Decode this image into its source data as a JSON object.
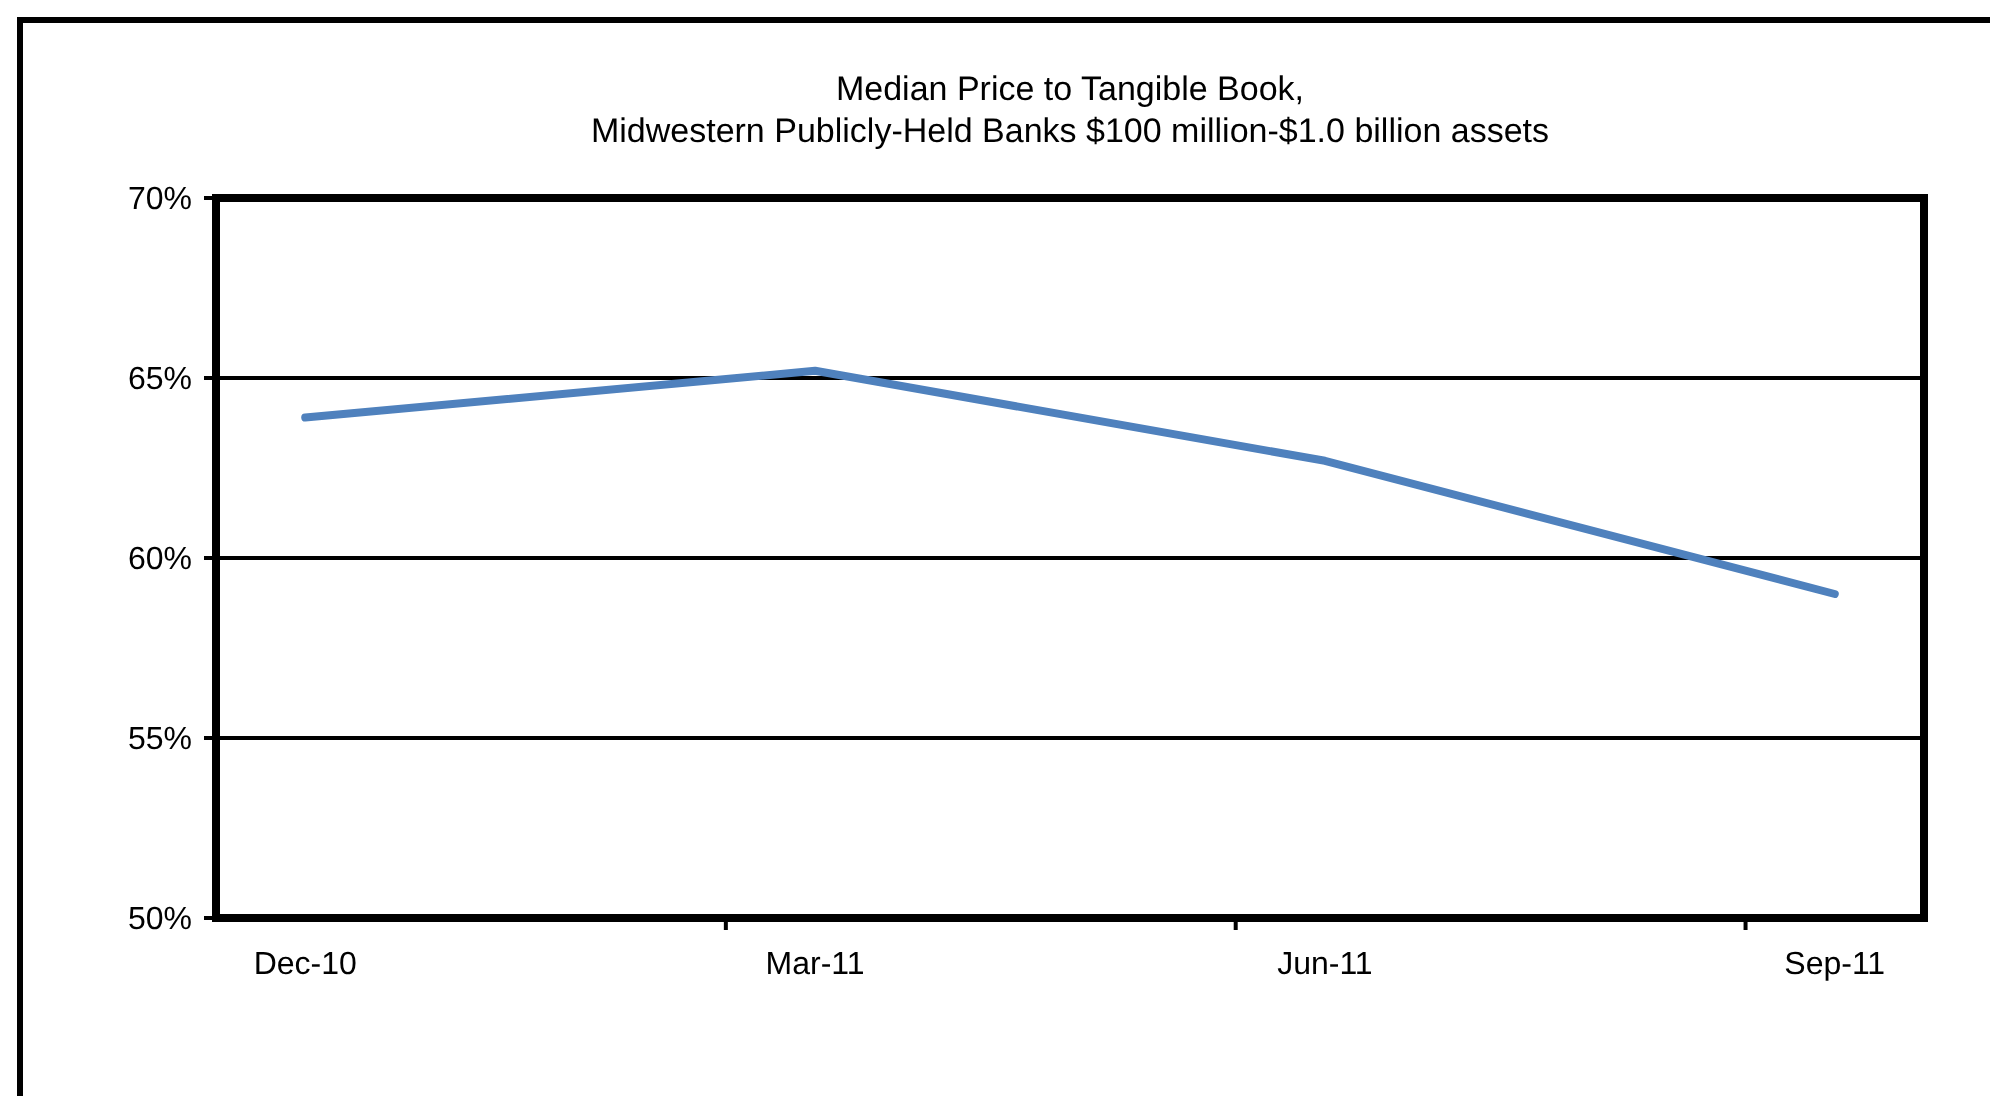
{
  "chart_data": {
    "type": "line",
    "title": "Median Price to Tangible Book,\nMidwestern Publicly-Held Banks $100 million-$1.0 billion assets",
    "categories": [
      "Dec-10",
      "Mar-11",
      "Jun-11",
      "Sep-11"
    ],
    "series": [
      {
        "color": "#4f81bd",
        "values": [
          63.9,
          65.2,
          62.7,
          59.0
        ]
      }
    ],
    "ylim": [
      50,
      70
    ],
    "yticks": [
      {
        "value": 50,
        "label": "50%"
      },
      {
        "value": 55,
        "label": "55%"
      },
      {
        "value": 60,
        "label": "60%"
      },
      {
        "value": 65,
        "label": "65%"
      },
      {
        "value": 70,
        "label": "70%"
      }
    ],
    "grid": "y",
    "marker": "none",
    "line_style": "solid"
  }
}
